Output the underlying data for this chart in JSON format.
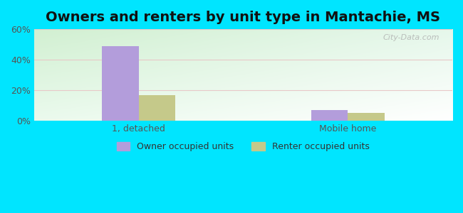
{
  "title": "Owners and renters by unit type in Mantachie, MS",
  "categories": [
    "1, detached",
    "Mobile home"
  ],
  "owner_values": [
    49,
    7
  ],
  "renter_values": [
    17,
    5
  ],
  "owner_color": "#b39ddb",
  "renter_color": "#c5c98a",
  "ylim": [
    0,
    60
  ],
  "yticks": [
    0,
    20,
    40,
    60
  ],
  "ytick_labels": [
    "0%",
    "20%",
    "40%",
    "60%"
  ],
  "background_color": "#00e5ff",
  "bar_width": 0.35,
  "group_positions": [
    1.0,
    3.0
  ],
  "xlim": [
    0.0,
    4.0
  ],
  "watermark": "City-Data.com",
  "legend_owner": "Owner occupied units",
  "legend_renter": "Renter occupied units",
  "title_fontsize": 14,
  "tick_fontsize": 9,
  "grid_color": "#dddddd",
  "gradient_left_color": "#d6f0d6",
  "gradient_right_color": "#f0faf0",
  "gradient_top_color": "#e8f5e8",
  "gradient_bottom_color": "#ffffff"
}
